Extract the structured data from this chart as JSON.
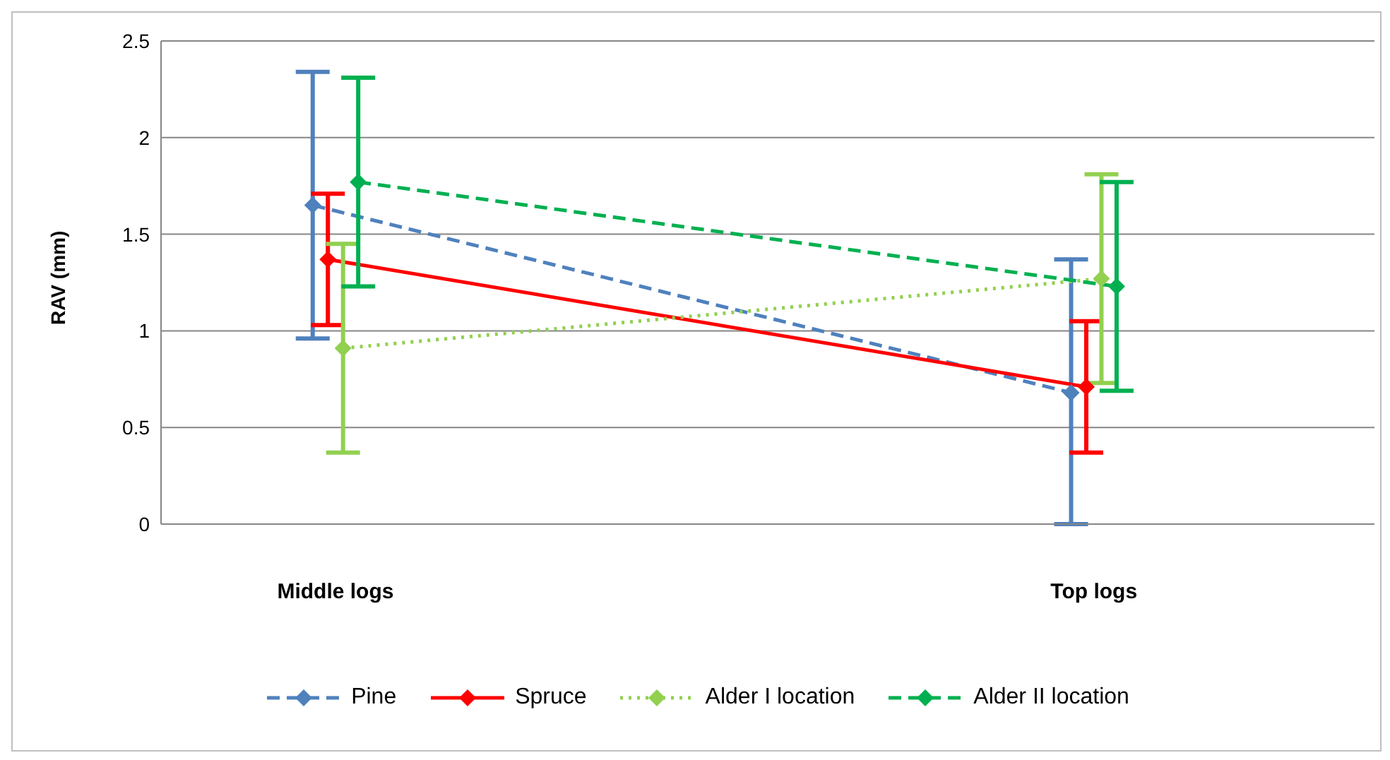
{
  "chart_data": {
    "type": "line",
    "ylabel": "RAV (mm)",
    "categories": [
      "Middle logs",
      "Top logs"
    ],
    "ylim": [
      0,
      2.5
    ],
    "yticks": [
      0,
      0.5,
      1,
      1.5,
      2,
      2.5
    ],
    "grid": "y",
    "legend": "bottom",
    "marker": "diamond",
    "series": [
      {
        "name": "Pine",
        "color": "#4f81bd",
        "line_style": "dashed",
        "values": [
          1.65,
          0.68
        ],
        "errors": [
          [
            0.96,
            2.34
          ],
          [
            0,
            1.37
          ]
        ]
      },
      {
        "name": "Spruce",
        "color": "#ff0000",
        "line_style": "solid",
        "values": [
          1.37,
          0.71
        ],
        "errors": [
          [
            1.03,
            1.71
          ],
          [
            0.37,
            1.05
          ]
        ]
      },
      {
        "name": "Alder I location",
        "color": "#92d050",
        "line_style": "dotted",
        "values": [
          0.91,
          1.27
        ],
        "errors": [
          [
            0.37,
            1.45
          ],
          [
            0.73,
            1.81
          ]
        ]
      },
      {
        "name": "Alder II location",
        "color": "#00b050",
        "line_style": "dashed",
        "values": [
          1.77,
          1.23
        ],
        "errors": [
          [
            1.23,
            2.31
          ],
          [
            0.69,
            1.77
          ]
        ]
      }
    ]
  }
}
